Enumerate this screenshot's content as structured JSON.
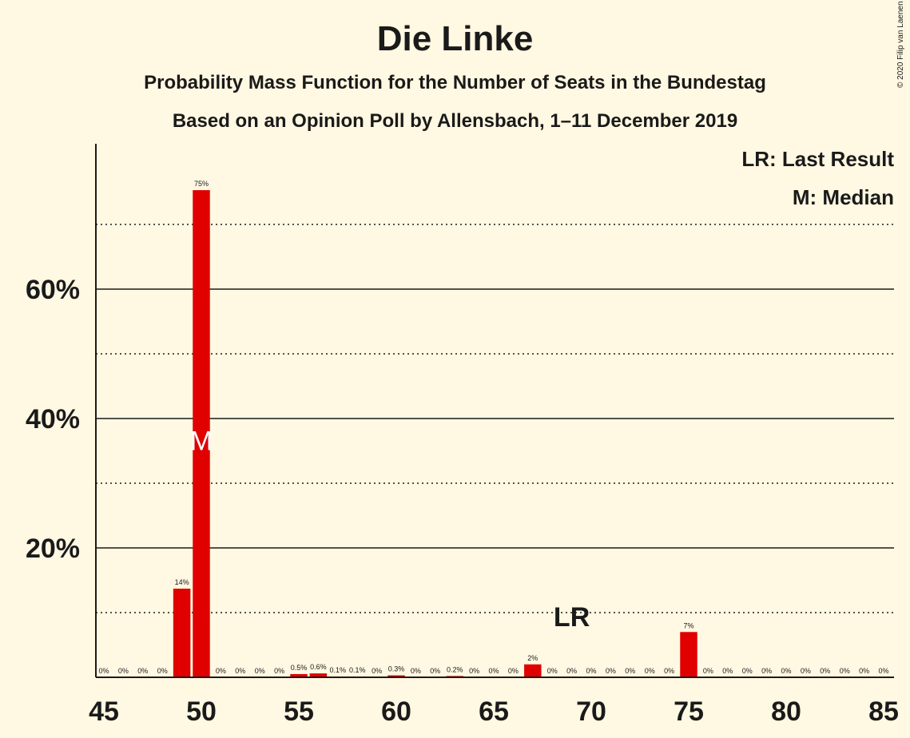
{
  "title": "Die Linke",
  "subtitle1": "Probability Mass Function for the Number of Seats in the Bundestag",
  "subtitle2": "Based on an Opinion Poll by Allensbach, 1–11 December 2019",
  "copyright": "© 2020 Filip van Laenen",
  "legend": {
    "last_result": "LR: Last Result",
    "median": "M: Median"
  },
  "colors": {
    "bar": "#e00000",
    "background": "#fff8e2",
    "text": "#1a1a1a"
  },
  "chart_data": {
    "type": "bar",
    "xlim": [
      45,
      85
    ],
    "ylim": [
      0,
      80
    ],
    "x_ticks": [
      45,
      50,
      55,
      60,
      65,
      70,
      75,
      80,
      85
    ],
    "y_ticks": [
      20,
      40,
      60
    ],
    "y_tick_labels": [
      "20%",
      "40%",
      "60%"
    ],
    "y_gridlines_solid": [
      20,
      40,
      60
    ],
    "y_gridlines_dotted": [
      10,
      30,
      50,
      70
    ],
    "seats": [
      45,
      46,
      47,
      48,
      49,
      50,
      51,
      52,
      53,
      54,
      55,
      56,
      57,
      58,
      59,
      60,
      61,
      62,
      63,
      64,
      65,
      66,
      67,
      68,
      69,
      70,
      71,
      72,
      73,
      74,
      75,
      76,
      77,
      78,
      79,
      80,
      81,
      82,
      83,
      84,
      85
    ],
    "values": [
      0,
      0,
      0,
      0,
      13.7,
      75.3,
      0,
      0,
      0,
      0,
      0.5,
      0.6,
      0.1,
      0.1,
      0,
      0.3,
      0,
      0,
      0.2,
      0,
      0,
      0,
      2,
      0,
      0,
      0,
      0,
      0,
      0,
      0,
      7,
      0,
      0,
      0,
      0,
      0,
      0,
      0,
      0,
      0,
      0
    ],
    "value_labels": [
      "0%",
      "0%",
      "0%",
      "0%",
      "14%",
      "75%",
      "0%",
      "0%",
      "0%",
      "0%",
      "0.5%",
      "0.6%",
      "0.1%",
      "0.1%",
      "0%",
      "0.3%",
      "0%",
      "0%",
      "0.2%",
      "0%",
      "0%",
      "0%",
      "2%",
      "0%",
      "0%",
      "0%",
      "0%",
      "0%",
      "0%",
      "0%",
      "7%",
      "0%",
      "0%",
      "0%",
      "0%",
      "0%",
      "0%",
      "0%",
      "0%",
      "0%",
      "0%"
    ],
    "median": {
      "seat": 50,
      "label": "M",
      "y": 37
    },
    "last_result": {
      "seat": 69,
      "label": "LR",
      "y": 9.5
    }
  }
}
